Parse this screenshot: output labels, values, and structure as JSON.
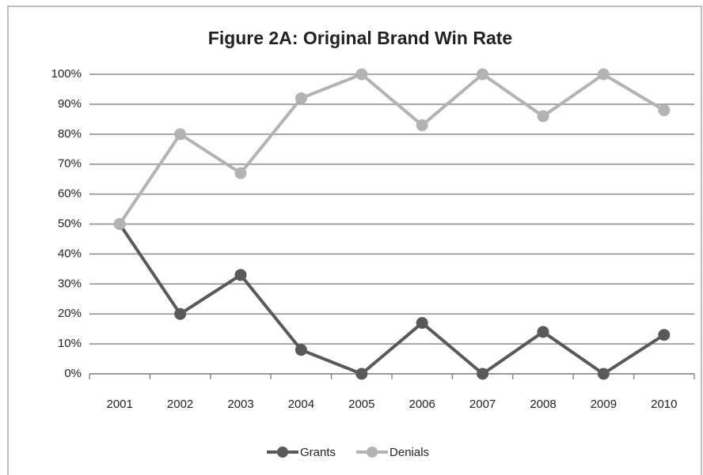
{
  "chart_data": {
    "type": "line",
    "title": "Figure 2A: Original Brand Win Rate",
    "categories": [
      "2001",
      "2002",
      "2003",
      "2004",
      "2005",
      "2006",
      "2007",
      "2008",
      "2009",
      "2010"
    ],
    "series": [
      {
        "name": "Grants",
        "color": "#595959",
        "values": [
          50,
          20,
          33,
          8,
          0,
          17,
          0,
          14,
          0,
          13
        ]
      },
      {
        "name": "Denials",
        "color": "#b3b3b3",
        "values": [
          50,
          80,
          67,
          92,
          100,
          83,
          100,
          86,
          100,
          88
        ]
      }
    ],
    "ylim": [
      0,
      100
    ],
    "yticks": [
      {
        "value": 0,
        "label": "0%"
      },
      {
        "value": 10,
        "label": "10%"
      },
      {
        "value": 20,
        "label": "20%"
      },
      {
        "value": 30,
        "label": "30%"
      },
      {
        "value": 40,
        "label": "40%"
      },
      {
        "value": 50,
        "label": "50%"
      },
      {
        "value": 60,
        "label": "60%"
      },
      {
        "value": 70,
        "label": "70%"
      },
      {
        "value": 80,
        "label": "80%"
      },
      {
        "value": 90,
        "label": "90%"
      },
      {
        "value": 100,
        "label": "100%"
      }
    ],
    "grid": true,
    "legend": "bottom"
  }
}
